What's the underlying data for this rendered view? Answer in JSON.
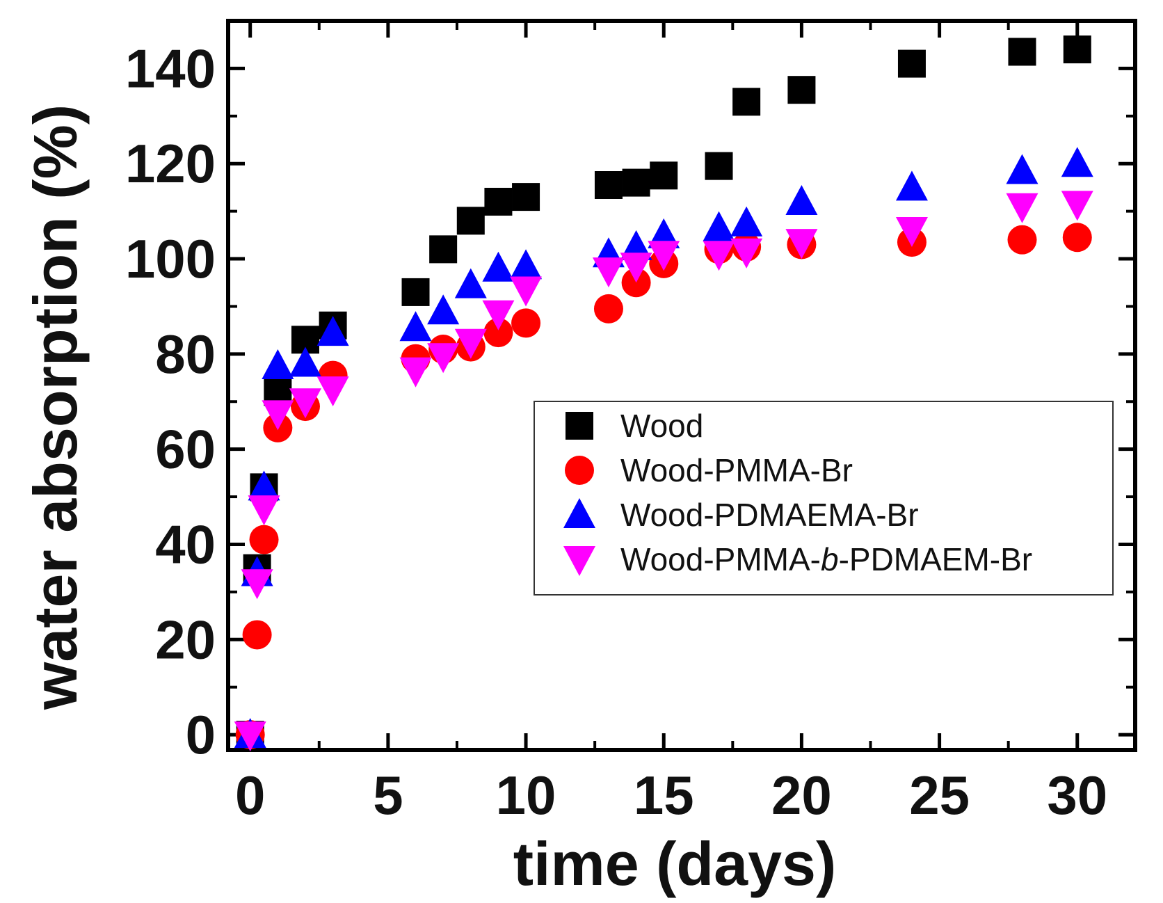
{
  "chart_data": {
    "type": "scatter",
    "title": "",
    "xlabel": "time (days)",
    "ylabel": "water absorption (%)",
    "xlim": [
      -0.8,
      32.1
    ],
    "ylim": [
      -3.2,
      150
    ],
    "xticks": [
      0,
      5,
      10,
      15,
      20,
      25,
      30
    ],
    "yticks": [
      0,
      20,
      40,
      60,
      80,
      100,
      120,
      140
    ],
    "grid": false,
    "legend_position": "center-right",
    "series": [
      {
        "name": "Wood",
        "marker": "square",
        "color": "#000000",
        "x": [
          0,
          0.25,
          0.5,
          1,
          2,
          3,
          6,
          7,
          8,
          9,
          10,
          13,
          14,
          15,
          17,
          18,
          20,
          24,
          28,
          30
        ],
        "y": [
          0,
          35,
          52,
          72,
          83,
          86,
          93,
          102,
          108,
          112,
          113,
          115.5,
          116,
          117.5,
          119.5,
          133,
          135.5,
          141,
          143.5,
          144
        ]
      },
      {
        "name": "Wood-PMMA-Br",
        "marker": "circle",
        "color": "#ff0000",
        "x": [
          0,
          0.25,
          0.5,
          1,
          2,
          3,
          6,
          7,
          8,
          9,
          10,
          13,
          14,
          15,
          17,
          18,
          20,
          24,
          28,
          30
        ],
        "y": [
          0,
          21,
          41,
          64.5,
          69,
          75.5,
          79,
          81,
          81.5,
          84.5,
          86.5,
          89.5,
          95,
          99,
          102,
          102.5,
          103,
          103.5,
          104,
          104.5
        ]
      },
      {
        "name": "Wood-PDMAEMA-Br",
        "marker": "triangle-up",
        "color": "#0000ff",
        "x": [
          0,
          0.25,
          0.5,
          1,
          2,
          3,
          6,
          7,
          8,
          9,
          10,
          13,
          14,
          15,
          17,
          18,
          20,
          24,
          28,
          30
        ],
        "y": [
          0,
          34,
          52,
          77.5,
          78,
          84.5,
          85.5,
          89,
          94.5,
          98,
          98.5,
          101,
          102.5,
          105,
          106.5,
          107.5,
          112,
          115,
          118.5,
          120
        ]
      },
      {
        "name": "Wood-PMMA-b-PDMAEM-Br",
        "marker": "triangle-down",
        "color": "#ff00ff",
        "x": [
          0,
          0.25,
          0.5,
          1,
          2,
          3,
          6,
          7,
          8,
          9,
          10,
          13,
          14,
          15,
          17,
          18,
          20,
          24,
          28,
          30
        ],
        "y": [
          0,
          32,
          47.5,
          67.5,
          70,
          72.5,
          76.5,
          79.5,
          82.5,
          88.5,
          93.5,
          97.5,
          98.5,
          101,
          101,
          101.5,
          103.5,
          106,
          111,
          111.5
        ]
      }
    ],
    "legend": {
      "entries": [
        {
          "prefix": "Wood",
          "italic": "",
          "suffix": ""
        },
        {
          "prefix": "Wood-PMMA-Br",
          "italic": "",
          "suffix": ""
        },
        {
          "prefix": "Wood-PDMAEMA-Br",
          "italic": "",
          "suffix": ""
        },
        {
          "prefix": "Wood-PMMA-",
          "italic": "b",
          "suffix": "-PDMAEM-Br"
        }
      ]
    }
  }
}
